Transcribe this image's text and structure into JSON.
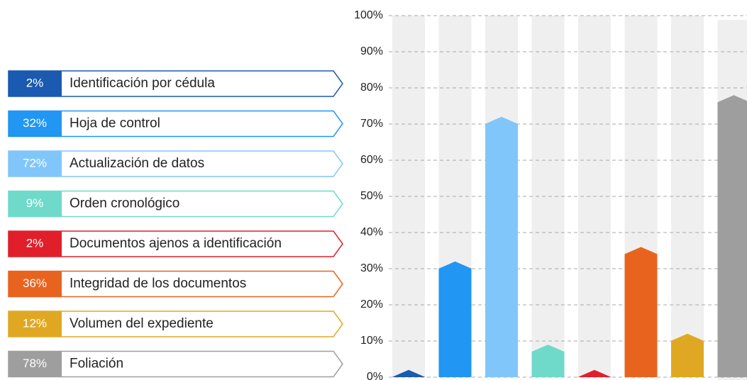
{
  "chart_data": {
    "type": "bar",
    "categories": [
      "Identificación por cédula",
      "Hoja de control",
      "Actualización de datos",
      "Orden cronológico",
      "Documentos ajenos a identificación",
      "Integridad de los documentos",
      "Volumen del expediente",
      "Foliación"
    ],
    "values": [
      2,
      32,
      72,
      9,
      2,
      36,
      12,
      78
    ],
    "value_labels": [
      "2%",
      "32%",
      "72%",
      "9%",
      "2%",
      "36%",
      "12%",
      "78%"
    ],
    "colors": [
      "#1a5ab0",
      "#2196f3",
      "#80c6fb",
      "#6fdac9",
      "#e11f2b",
      "#e8641e",
      "#e0a822",
      "#9e9e9e"
    ],
    "ylim": [
      0,
      100
    ],
    "yticks": [
      {
        "value": 0,
        "label": "0%"
      },
      {
        "value": 10,
        "label": "10%"
      },
      {
        "value": 20,
        "label": "20%"
      },
      {
        "value": 30,
        "label": "30%"
      },
      {
        "value": 40,
        "label": "40%"
      },
      {
        "value": 50,
        "label": "50%"
      },
      {
        "value": 60,
        "label": "60%"
      },
      {
        "value": 70,
        "label": "70%"
      },
      {
        "value": 80,
        "label": "80%"
      },
      {
        "value": 90,
        "label": "90%"
      },
      {
        "value": 100,
        "label": "100%"
      }
    ],
    "grid": true
  }
}
